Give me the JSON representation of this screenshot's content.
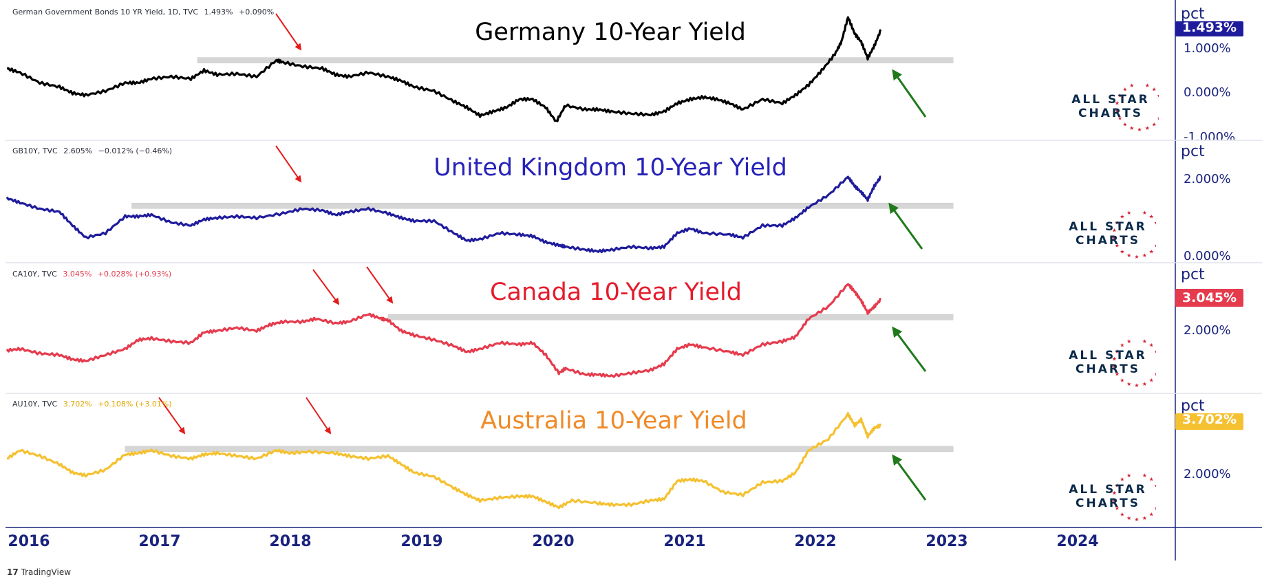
{
  "colors": {
    "germany": "#000000",
    "uk": "#1f1c9c",
    "canada": "#e53b4d",
    "australia": "#f5c131",
    "axis": "#1a237e",
    "resistance": "#d6d6d6",
    "arrow_red": "#e51b1b",
    "arrow_green": "#1f7a1a"
  },
  "chart_data": [
    {
      "type": "line",
      "title": "Germany 10-Year Yield",
      "legend": {
        "symbol": "German Government Bonds 10 YR Yield, 1D, TVC",
        "last": "1.493%",
        "change": "+0.090%"
      },
      "unit": "pct",
      "price_tag": "1.493%",
      "y_ticks": [
        "1.000%",
        "0.000%",
        "-1.000%"
      ],
      "ylim": [
        -1.0,
        1.8
      ],
      "resistance_level": 0.75,
      "resistance_range": [
        2017.45,
        2023.2
      ],
      "series": [
        {
          "x": [
            2016.0,
            2016.1,
            2016.25,
            2016.4,
            2016.5,
            2016.6,
            2016.75,
            2016.9,
            2017.0,
            2017.1,
            2017.25,
            2017.4,
            2017.5,
            2017.6,
            2017.75,
            2017.9,
            2018.05,
            2018.1,
            2018.25,
            2018.4,
            2018.5,
            2018.6,
            2018.75,
            2018.9,
            2019.0,
            2019.1,
            2019.25,
            2019.4,
            2019.5,
            2019.6,
            2019.7,
            2019.8,
            2019.9,
            2020.0,
            2020.1,
            2020.18,
            2020.25,
            2020.4,
            2020.5,
            2020.6,
            2020.75,
            2020.9,
            2021.0,
            2021.1,
            2021.2,
            2021.3,
            2021.4,
            2021.5,
            2021.6,
            2021.75,
            2021.9,
            2022.0,
            2022.1,
            2022.2,
            2022.3,
            2022.35,
            2022.4,
            2022.45,
            2022.5,
            2022.55,
            2022.6,
            2022.65
          ],
          "y": [
            0.55,
            0.45,
            0.2,
            0.1,
            -0.05,
            -0.1,
            0.0,
            0.2,
            0.2,
            0.3,
            0.35,
            0.3,
            0.5,
            0.4,
            0.42,
            0.35,
            0.75,
            0.7,
            0.6,
            0.55,
            0.4,
            0.35,
            0.45,
            0.35,
            0.25,
            0.1,
            0.0,
            -0.25,
            -0.4,
            -0.6,
            -0.5,
            -0.4,
            -0.2,
            -0.2,
            -0.4,
            -0.75,
            -0.35,
            -0.45,
            -0.45,
            -0.5,
            -0.55,
            -0.58,
            -0.5,
            -0.3,
            -0.2,
            -0.15,
            -0.2,
            -0.3,
            -0.45,
            -0.2,
            -0.3,
            -0.1,
            0.15,
            0.5,
            0.9,
            1.2,
            1.8,
            1.4,
            1.2,
            0.8,
            1.1,
            1.493
          ]
        }
      ]
    },
    {
      "type": "line",
      "title": "United Kingdom 10-Year Yield",
      "legend": {
        "symbol": "GB10Y, TVC",
        "last": "2.605%",
        "change": "−0.012% (−0.46%)"
      },
      "unit": "pct",
      "y_ticks": [
        "2.000%",
        "0.000%"
      ],
      "ylim": [
        0.0,
        3.4
      ],
      "resistance_level": 1.65,
      "resistance_range": [
        2016.95,
        2023.2
      ],
      "series": [
        {
          "x": [
            2016.0,
            2016.1,
            2016.25,
            2016.4,
            2016.5,
            2016.6,
            2016.75,
            2016.9,
            2017.0,
            2017.1,
            2017.25,
            2017.4,
            2017.5,
            2017.6,
            2017.75,
            2017.9,
            2018.1,
            2018.25,
            2018.4,
            2018.5,
            2018.6,
            2018.75,
            2018.9,
            2019.0,
            2019.1,
            2019.25,
            2019.4,
            2019.5,
            2019.6,
            2019.75,
            2019.9,
            2020.0,
            2020.1,
            2020.2,
            2020.25,
            2020.4,
            2020.5,
            2020.6,
            2020.75,
            2020.9,
            2021.0,
            2021.1,
            2021.2,
            2021.3,
            2021.5,
            2021.6,
            2021.75,
            2021.9,
            2022.0,
            2022.1,
            2022.25,
            2022.4,
            2022.45,
            2022.5,
            2022.55,
            2022.6,
            2022.65
          ],
          "y": [
            1.9,
            1.75,
            1.55,
            1.45,
            1.0,
            0.6,
            0.75,
            1.3,
            1.3,
            1.35,
            1.1,
            1.0,
            1.2,
            1.25,
            1.3,
            1.25,
            1.4,
            1.55,
            1.5,
            1.35,
            1.45,
            1.55,
            1.4,
            1.25,
            1.15,
            1.15,
            0.75,
            0.5,
            0.55,
            0.75,
            0.7,
            0.65,
            0.45,
            0.35,
            0.3,
            0.2,
            0.15,
            0.2,
            0.3,
            0.25,
            0.3,
            0.75,
            0.9,
            0.75,
            0.7,
            0.6,
            1.0,
            1.0,
            1.25,
            1.6,
            2.0,
            2.6,
            2.3,
            2.1,
            1.85,
            2.3,
            2.605
          ]
        }
      ]
    },
    {
      "type": "line",
      "title": "Canada 10-Year Yield",
      "legend": {
        "symbol": "CA10Y, TVC",
        "last": "3.045%",
        "change": "+0.028% (+0.93%)"
      },
      "unit": "pct",
      "price_tag": "3.045%",
      "y_ticks": [
        "2.000%"
      ],
      "ylim": [
        0.2,
        3.8
      ],
      "resistance_level": 2.45,
      "resistance_range": [
        2018.9,
        2023.2
      ],
      "series": [
        {
          "x": [
            2016.0,
            2016.1,
            2016.25,
            2016.4,
            2016.5,
            2016.6,
            2016.75,
            2016.9,
            2017.0,
            2017.1,
            2017.25,
            2017.4,
            2017.5,
            2017.6,
            2017.75,
            2017.9,
            2018.0,
            2018.1,
            2018.25,
            2018.35,
            2018.5,
            2018.6,
            2018.75,
            2018.85,
            2018.9,
            2019.0,
            2019.1,
            2019.25,
            2019.4,
            2019.5,
            2019.6,
            2019.75,
            2019.9,
            2020.0,
            2020.1,
            2020.2,
            2020.25,
            2020.4,
            2020.5,
            2020.6,
            2020.75,
            2020.9,
            2021.0,
            2021.1,
            2021.2,
            2021.3,
            2021.5,
            2021.6,
            2021.75,
            2021.9,
            2022.0,
            2022.1,
            2022.25,
            2022.4,
            2022.45,
            2022.5,
            2022.55,
            2022.6,
            2022.65
          ],
          "y": [
            1.35,
            1.4,
            1.25,
            1.2,
            1.05,
            1.0,
            1.2,
            1.4,
            1.7,
            1.75,
            1.65,
            1.6,
            1.95,
            2.0,
            2.1,
            2.0,
            2.2,
            2.3,
            2.3,
            2.4,
            2.25,
            2.3,
            2.55,
            2.4,
            2.35,
            2.0,
            1.85,
            1.7,
            1.5,
            1.3,
            1.4,
            1.6,
            1.55,
            1.6,
            1.2,
            0.6,
            0.75,
            0.55,
            0.55,
            0.5,
            0.6,
            0.7,
            0.9,
            1.4,
            1.55,
            1.45,
            1.3,
            1.2,
            1.55,
            1.65,
            1.8,
            2.4,
            2.8,
            3.55,
            3.3,
            3.0,
            2.6,
            2.8,
            3.045
          ]
        }
      ]
    },
    {
      "type": "line",
      "title": "Australia 10-Year Yield",
      "legend": {
        "symbol": "AU10Y, TVC",
        "last": "3.702%",
        "change": "+0.108% (+3.01%)"
      },
      "unit": "pct",
      "price_tag": "3.702%",
      "y_ticks": [
        "2.000%"
      ],
      "ylim": [
        0.4,
        4.4
      ],
      "resistance_level": 2.85,
      "resistance_range": [
        2016.9,
        2023.2
      ],
      "series": [
        {
          "x": [
            2016.0,
            2016.1,
            2016.25,
            2016.4,
            2016.5,
            2016.6,
            2016.75,
            2016.9,
            2017.0,
            2017.1,
            2017.25,
            2017.4,
            2017.5,
            2017.6,
            2017.75,
            2017.9,
            2018.05,
            2018.15,
            2018.3,
            2018.5,
            2018.6,
            2018.75,
            2018.9,
            2019.0,
            2019.1,
            2019.25,
            2019.4,
            2019.5,
            2019.6,
            2019.75,
            2019.9,
            2020.0,
            2020.1,
            2020.2,
            2020.3,
            2020.5,
            2020.6,
            2020.75,
            2020.9,
            2021.0,
            2021.1,
            2021.2,
            2021.3,
            2021.45,
            2021.6,
            2021.75,
            2021.9,
            2022.0,
            2022.1,
            2022.25,
            2022.4,
            2022.45,
            2022.5,
            2022.55,
            2022.6,
            2022.65
          ],
          "y": [
            2.5,
            2.8,
            2.6,
            2.3,
            2.0,
            1.9,
            2.1,
            2.65,
            2.7,
            2.8,
            2.6,
            2.5,
            2.65,
            2.7,
            2.6,
            2.5,
            2.8,
            2.7,
            2.75,
            2.7,
            2.6,
            2.5,
            2.6,
            2.3,
            2.0,
            1.85,
            1.45,
            1.2,
            1.0,
            1.1,
            1.15,
            1.15,
            0.95,
            0.75,
            1.0,
            0.9,
            0.85,
            0.85,
            1.0,
            1.05,
            1.7,
            1.75,
            1.7,
            1.3,
            1.2,
            1.65,
            1.7,
            2.0,
            2.8,
            3.2,
            4.1,
            3.7,
            3.9,
            3.3,
            3.6,
            3.702
          ]
        }
      ]
    }
  ],
  "x_axis": {
    "labels": [
      "2016",
      "2017",
      "2018",
      "2019",
      "2020",
      "2021",
      "2022",
      "2023",
      "2024"
    ]
  },
  "logo": {
    "line1": "ALL STAR",
    "line2": "CHARTS"
  },
  "footer": {
    "brand": "TradingView"
  }
}
